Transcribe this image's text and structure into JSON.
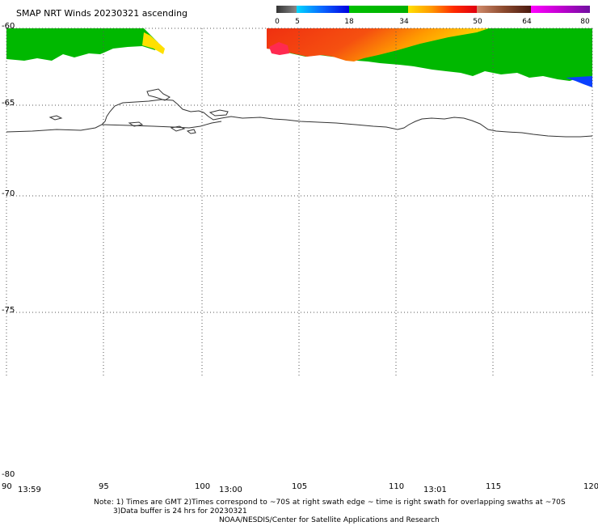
{
  "title": "SMAP NRT Winds 20230321 ascending",
  "colorbar": {
    "segments": [
      {
        "from": 0,
        "to": 5,
        "color": "#555555"
      },
      {
        "from": 5,
        "to": 18,
        "color": "#0a64ff"
      },
      {
        "from": 18,
        "to": 34,
        "color": "#00c800"
      },
      {
        "from": 34,
        "to": 50,
        "color": "#ff2a00"
      },
      {
        "from": 50,
        "to": 64,
        "color": "#8c4a2e"
      },
      {
        "from": 64,
        "to": 80,
        "color": "#c000d0"
      }
    ],
    "ticks": [
      "0",
      "5",
      "18",
      "34",
      "50",
      "64",
      "80"
    ]
  },
  "map": {
    "lat_labels": [
      "-60",
      "-65",
      "-70",
      "-75",
      "-80"
    ],
    "lon_labels": [
      "90",
      "95",
      "100",
      "105",
      "110",
      "115",
      "120"
    ],
    "times": [
      "13:59",
      "13:00",
      "13:01"
    ],
    "lon_range": [
      90,
      120
    ],
    "lat_range": [
      -60,
      -80
    ]
  },
  "notes": {
    "line1": "Note: 1) Times are GMT 2)Times correspond to ~70S at right swath edge ~ time is right swath for overlapping swaths at ~70S",
    "line2": "3)Data buffer is 24 hrs for 20230321",
    "line3": "NOAA/NESDIS/Center for Satellite Applications and Research"
  },
  "colors": {
    "swath_green": "#00c000",
    "swath_green_dark": "#089b00",
    "swath_red": "#f03010",
    "swath_orange": "#ff8a00",
    "swath_yellow": "#ffe000",
    "swath_blue": "#0a40ff",
    "coast": "#333333",
    "grid": "#555555"
  }
}
